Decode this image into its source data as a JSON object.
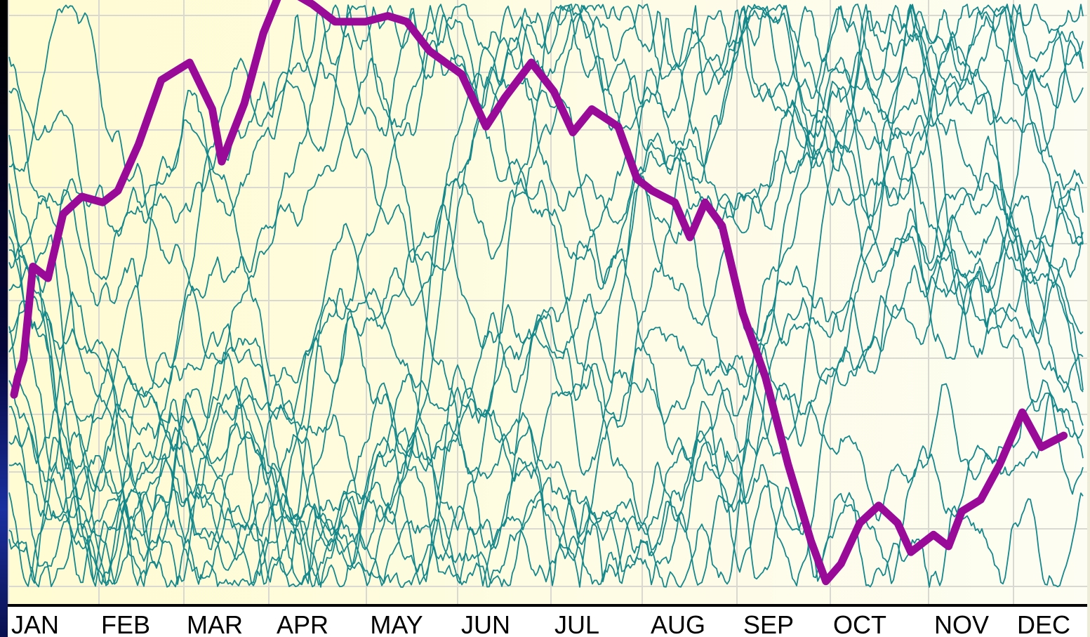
{
  "chart_data": {
    "type": "line",
    "title": "",
    "xlabel": "",
    "ylabel": "",
    "categories": [
      "JAN",
      "FEB",
      "MAR",
      "APR",
      "MAY",
      "JUN",
      "JUL",
      "AUG",
      "SEP",
      "OCT",
      "NOV",
      "DEC"
    ],
    "ylim": [
      0,
      100
    ],
    "grid": true,
    "legend": "none",
    "background_gradient": [
      "#fffbd2",
      "#fdfdf3"
    ],
    "grid_color": "#d9d9d1",
    "axis_color": "#000000",
    "colors": {
      "highlight": "#990a99",
      "background_series": "#14888a"
    },
    "highlight_series": {
      "values": [
        [
          0.0,
          33
        ],
        [
          0.02,
          36
        ],
        [
          0.05,
          39
        ],
        [
          0.1,
          55
        ],
        [
          0.18,
          53
        ],
        [
          0.26,
          64
        ],
        [
          0.36,
          67
        ],
        [
          0.47,
          66
        ],
        [
          0.55,
          68
        ],
        [
          0.66,
          76
        ],
        [
          0.78,
          87
        ],
        [
          0.93,
          90
        ],
        [
          1.05,
          82
        ],
        [
          1.1,
          73
        ],
        [
          1.22,
          83
        ],
        [
          1.32,
          95
        ],
        [
          1.42,
          103
        ],
        [
          1.58,
          100
        ],
        [
          1.7,
          97
        ],
        [
          1.86,
          97
        ],
        [
          1.98,
          98
        ],
        [
          2.08,
          97
        ],
        [
          2.2,
          92
        ],
        [
          2.37,
          88
        ],
        [
          2.5,
          79
        ],
        [
          2.6,
          84
        ],
        [
          2.74,
          90
        ],
        [
          2.86,
          85
        ],
        [
          2.96,
          78
        ],
        [
          3.06,
          82
        ],
        [
          3.2,
          79
        ],
        [
          3.3,
          70
        ],
        [
          3.38,
          68
        ],
        [
          3.5,
          66
        ],
        [
          3.58,
          60
        ],
        [
          3.66,
          66
        ],
        [
          3.75,
          62
        ],
        [
          3.86,
          47
        ],
        [
          3.98,
          36
        ],
        [
          4.1,
          21
        ],
        [
          4.22,
          8
        ],
        [
          4.3,
          1
        ],
        [
          4.38,
          4
        ],
        [
          4.48,
          11
        ],
        [
          4.58,
          14
        ],
        [
          4.68,
          11
        ],
        [
          4.75,
          6
        ],
        [
          4.87,
          9
        ],
        [
          4.95,
          7
        ],
        [
          5.02,
          13
        ],
        [
          5.12,
          15
        ],
        [
          5.22,
          21
        ],
        [
          5.34,
          30
        ],
        [
          5.44,
          24
        ],
        [
          5.56,
          26
        ]
      ]
    },
    "background_series": {
      "count": 20,
      "seeds": [
        11,
        23,
        37,
        41,
        53,
        67,
        71,
        83,
        97,
        101,
        113,
        127,
        131,
        149,
        151,
        163,
        173,
        181,
        191,
        199
      ],
      "start_values": [
        92,
        86,
        78,
        72,
        66,
        61,
        56,
        51,
        46,
        41,
        36,
        31,
        26,
        21,
        16,
        11,
        8,
        58,
        44,
        70
      ],
      "min": 0,
      "max": 100
    }
  }
}
